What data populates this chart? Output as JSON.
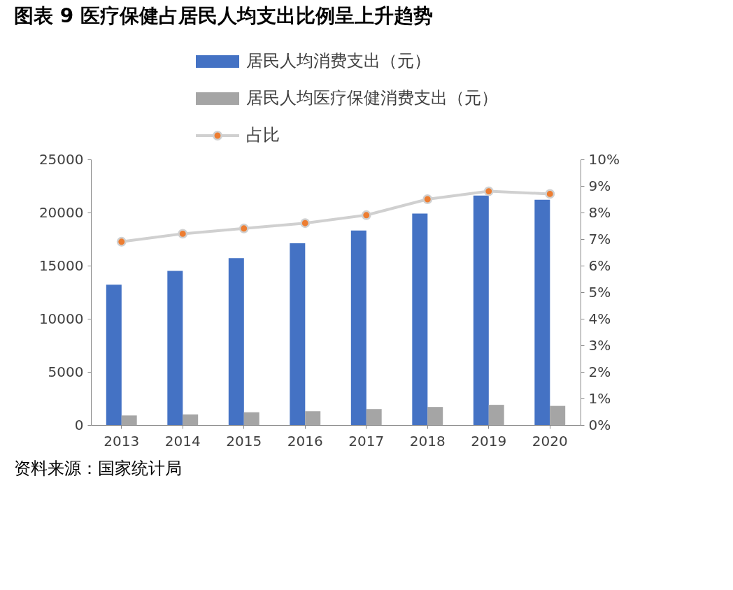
{
  "chart_data": {
    "type": "bar",
    "title": "图表 9 医疗保健占居民人均支出比例呈上升趋势",
    "categories": [
      "2013",
      "2014",
      "2015",
      "2016",
      "2017",
      "2018",
      "2019",
      "2020"
    ],
    "series": [
      {
        "name": "居民人均消费支出（元）",
        "color": "#4472c4",
        "values": [
          13200,
          14500,
          15700,
          17100,
          18300,
          19900,
          21600,
          21200
        ]
      },
      {
        "name": "居民人均医疗保健消费支出（元）",
        "color": "#a5a5a5",
        "values": [
          900,
          1000,
          1200,
          1300,
          1500,
          1700,
          1900,
          1800
        ]
      },
      {
        "name": "占比",
        "type": "line",
        "axis": "y2",
        "color": "#d0d0d0",
        "colors": [
          "#ed7d31",
          "#ed7d31",
          "#ed7d31",
          "#ed7d31",
          "#ed7d31",
          "#ed7d31",
          "#ed7d31",
          "#ed7d31"
        ],
        "values": [
          6.9,
          7.2,
          7.4,
          7.6,
          7.9,
          8.5,
          8.8,
          8.7
        ]
      }
    ],
    "ylim": [
      0,
      25000
    ],
    "yticks": [
      0,
      5000,
      10000,
      15000,
      20000,
      25000
    ],
    "y2lim": [
      0,
      10
    ],
    "y2ticks": [
      {
        "value": 0,
        "label": "0%"
      },
      {
        "value": 1,
        "label": "1%"
      },
      {
        "value": 2,
        "label": "2%"
      },
      {
        "value": 3,
        "label": "3%"
      },
      {
        "value": 4,
        "label": "4%"
      },
      {
        "value": 5,
        "label": "5%"
      },
      {
        "value": 6,
        "label": "6%"
      },
      {
        "value": 7,
        "label": "7%"
      },
      {
        "value": 8,
        "label": "8%"
      },
      {
        "value": 9,
        "label": "9%"
      },
      {
        "value": 10,
        "label": "10%"
      }
    ],
    "marker": "circle",
    "legend": "top",
    "grid": false,
    "annotations": [
      "资料来源：国家统计局"
    ]
  }
}
